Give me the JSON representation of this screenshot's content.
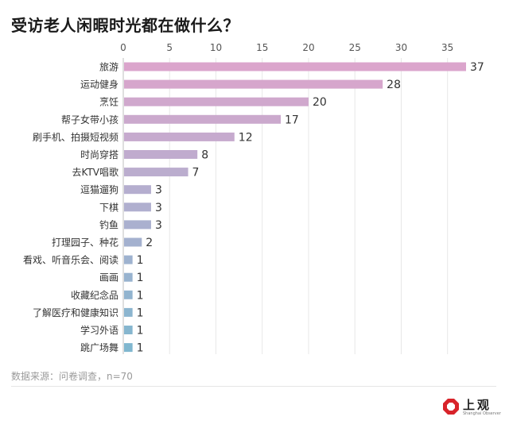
{
  "title": "受访老人闲暇时光都在做什么？",
  "source": "数据来源：问卷调查，n=70",
  "logo": {
    "cn": "上观",
    "en": "Shanghai Observer"
  },
  "colors": {
    "text": "#333333",
    "axis": "#555555",
    "grid": "#e8e8e8",
    "bar_scale": [
      "#dba5cc",
      "#b0afcf",
      "#80b7cf"
    ]
  },
  "chart_data": {
    "type": "bar",
    "orientation": "horizontal",
    "title": "受访老人闲暇时光都在做什么？",
    "xlabel": "",
    "ylabel": "",
    "xlim": [
      0,
      37
    ],
    "xticks": [
      0,
      5,
      10,
      15,
      20,
      25,
      30,
      35
    ],
    "categories": [
      "旅游",
      "运动健身",
      "烹饪",
      "帮子女带小孩",
      "刷手机、拍摄短视频",
      "时尚穿搭",
      "去KTV唱歌",
      "逗猫遛狗",
      "下棋",
      "钓鱼",
      "打理园子、种花",
      "看戏、听音乐会、阅读",
      "画画",
      "收藏纪念品",
      "了解医疗和健康知识",
      "学习外语",
      "跳广场舞"
    ],
    "values": [
      37,
      28,
      20,
      17,
      12,
      8,
      7,
      3,
      3,
      3,
      2,
      1,
      1,
      1,
      1,
      1,
      1
    ],
    "grid": true
  }
}
